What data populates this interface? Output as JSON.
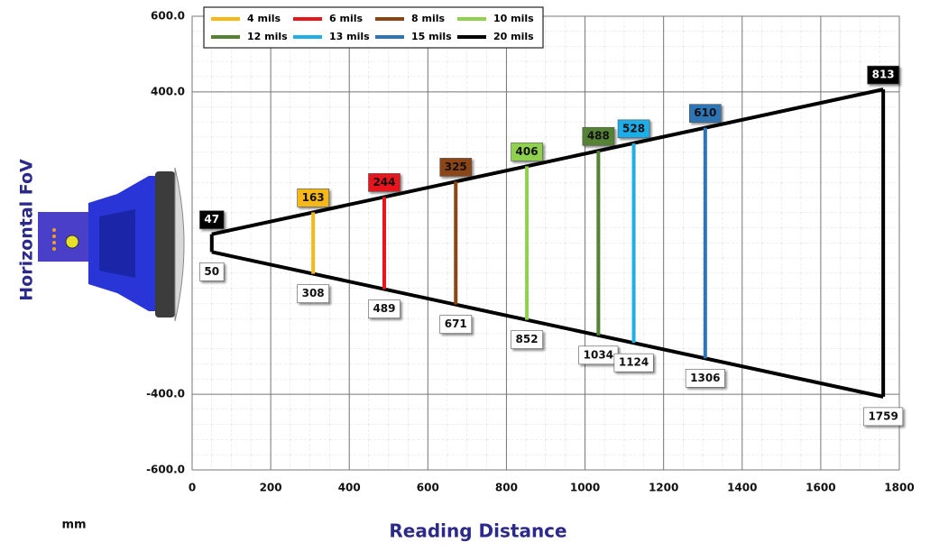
{
  "chart_data": {
    "type": "reading-field",
    "x_label": "Reading Distance",
    "y_label": "Horizontal FoV",
    "unit": "mm",
    "xlim": [
      0,
      1800
    ],
    "xticks": [
      0,
      200,
      400,
      600,
      800,
      1000,
      1200,
      1400,
      1600,
      1800
    ],
    "ylim": [
      -600,
      600
    ],
    "yticks": [
      {
        "value": 600,
        "label": "600.0"
      },
      {
        "value": 400,
        "label": "400.0"
      },
      {
        "value": -400,
        "label": "-400.0"
      },
      {
        "value": -600,
        "label": "-600.0"
      }
    ],
    "grid": true,
    "series": [
      {
        "name": "4 mils",
        "color": "#f5b814",
        "x": [
          308
        ],
        "values": [
          163
        ]
      },
      {
        "name": "6 mils",
        "color": "#e8161b",
        "x": [
          489
        ],
        "values": [
          244
        ]
      },
      {
        "name": "8 mils",
        "color": "#8b4513",
        "x": [
          671
        ],
        "values": [
          325
        ]
      },
      {
        "name": "10 mils",
        "color": "#8fd14f",
        "x": [
          852
        ],
        "values": [
          406
        ]
      },
      {
        "name": "12 mils",
        "color": "#548235",
        "x": [
          1034
        ],
        "values": [
          488
        ]
      },
      {
        "name": "13 mils",
        "color": "#1eaee8",
        "x": [
          1124
        ],
        "values": [
          528
        ]
      },
      {
        "name": "15 mils",
        "color": "#2e75b6",
        "x": [
          1306
        ],
        "values": [
          610
        ]
      },
      {
        "name": "20 mils",
        "color": "#000000",
        "x": [
          50,
          1759
        ],
        "values": [
          47,
          813
        ]
      }
    ]
  }
}
